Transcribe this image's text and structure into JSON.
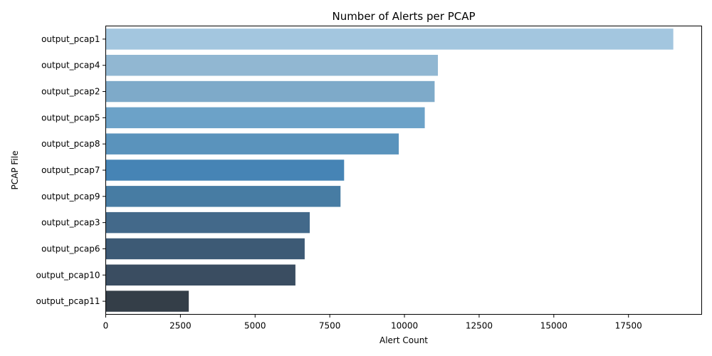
{
  "chart_data": {
    "type": "bar",
    "orientation": "horizontal",
    "title": "Number of Alerts per PCAP",
    "xlabel": "Alert Count",
    "ylabel": "PCAP File",
    "xlim": [
      0,
      19950
    ],
    "xticks": [
      0,
      2500,
      5000,
      7500,
      10000,
      12500,
      15000,
      17500
    ],
    "grid": false,
    "categories": [
      "output_pcap1",
      "output_pcap4",
      "output_pcap2",
      "output_pcap5",
      "output_pcap8",
      "output_pcap7",
      "output_pcap9",
      "output_pcap3",
      "output_pcap6",
      "output_pcap10",
      "output_pcap11"
    ],
    "values": [
      19000,
      11120,
      11010,
      10680,
      9810,
      7980,
      7860,
      6830,
      6660,
      6350,
      2780
    ],
    "colors": [
      "#a3c6df",
      "#91b7d2",
      "#7eaac9",
      "#6ca2c8",
      "#5a93bc",
      "#4684b5",
      "#477ca3",
      "#43698a",
      "#3d5a75",
      "#3a4d61",
      "#343e48"
    ]
  }
}
